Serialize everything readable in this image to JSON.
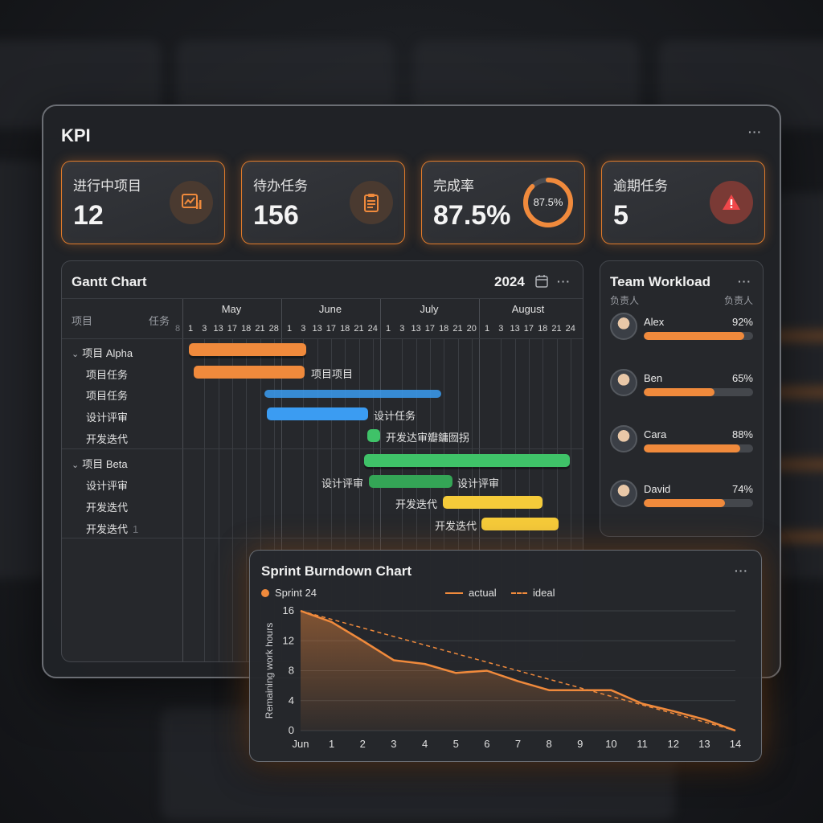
{
  "kpi_panel": {
    "title": "KPI",
    "more": "···",
    "cards": [
      {
        "label": "进行中项目",
        "value": "12",
        "icon": "chart-icon"
      },
      {
        "label": "待办任务",
        "value": "156",
        "icon": "clipboard-icon"
      },
      {
        "label": "完成率",
        "value": "87.5%",
        "ring_label": "87.5%",
        "ring_fraction": 0.875
      },
      {
        "label": "逾期任务",
        "value": "5",
        "icon": "alert-icon"
      }
    ]
  },
  "gantt": {
    "title": "Gantt Chart",
    "year": "2024",
    "more": "···",
    "col_project": "项目",
    "col_task": "任务",
    "prev_day": "8",
    "months": [
      "May",
      "June",
      "July",
      "August"
    ],
    "days": [
      [
        "1",
        "3",
        "13",
        "17",
        "18",
        "21",
        "28"
      ],
      [
        "1",
        "3",
        "13",
        "17",
        "18",
        "21",
        "24"
      ],
      [
        "1",
        "3",
        "13",
        "17",
        "18",
        "21",
        "20"
      ],
      [
        "1",
        "3",
        "13",
        "17",
        "18",
        "21",
        "24"
      ]
    ],
    "rows": [
      {
        "label": "项目 Alpha",
        "group": true
      },
      {
        "label": "项目任务"
      },
      {
        "label": "项目任务"
      },
      {
        "label": "设计评审"
      },
      {
        "label": "开发迭代"
      },
      {
        "label": "项目 Beta",
        "group": true
      },
      {
        "label": "设计评审"
      },
      {
        "label": "开发迭代"
      },
      {
        "label": "开发迭代",
        "suffix": "1"
      }
    ],
    "bar_labels": {
      "alpha_task": "项目项目",
      "alpha_review": "设计任务",
      "alpha_iter": "开发达审瓣鏞囫拐",
      "beta_review_left": "设计评审",
      "beta_review_right": "设计评审",
      "beta_iter1": "开发迭代",
      "beta_iter2": "开发迭代"
    },
    "colors": {
      "orange": "#f08a3c",
      "blue": "#3b9cf2",
      "green": "#3fc268",
      "yellow": "#f5cb3a"
    }
  },
  "team": {
    "title": "Team Workload",
    "more": "···",
    "head_left": "负责人",
    "head_right": "负责人",
    "members": [
      {
        "name": "Alex",
        "pct": "92%",
        "value": 0.92
      },
      {
        "name": "Ben",
        "pct": "65%",
        "value": 0.65
      },
      {
        "name": "Cara",
        "pct": "88%",
        "value": 0.88
      },
      {
        "name": "David",
        "pct": "74%",
        "value": 0.74
      }
    ]
  },
  "chart_data": {
    "type": "line",
    "title": "Sprint Burndown Chart",
    "sprint_label": "Sprint 24",
    "ylabel": "Remaining work hours",
    "xlabel": "",
    "ylim": [
      0,
      16
    ],
    "yticks": [
      0,
      4,
      8,
      12,
      16
    ],
    "x_tick_labels": [
      "Jun",
      "1",
      "2",
      "3",
      "4",
      "5",
      "6",
      "7",
      "8",
      "9",
      "10",
      "11",
      "12",
      "13",
      "14"
    ],
    "legend_placement": "top",
    "grid": true,
    "series": [
      {
        "name": "actual",
        "style": "solid",
        "color": "#f08a3c",
        "x": [
          0,
          1,
          2,
          3,
          4,
          5,
          6,
          7,
          8,
          9,
          10,
          11,
          12,
          13,
          14
        ],
        "values": [
          16,
          14.5,
          12,
          9.4,
          8.9,
          7.7,
          8.0,
          6.6,
          5.4,
          5.4,
          5.4,
          3.6,
          2.6,
          1.5,
          0
        ]
      },
      {
        "name": "ideal",
        "style": "dashed",
        "color": "#f08a3c",
        "x": [
          0,
          14
        ],
        "values": [
          16,
          0
        ]
      }
    ]
  }
}
